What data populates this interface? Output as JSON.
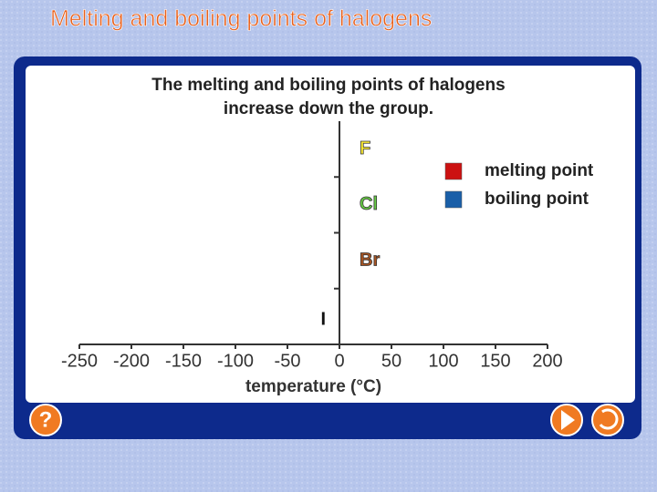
{
  "page_title": "Melting and boiling points of halogens",
  "help_button": "?",
  "chart_data": {
    "type": "bar",
    "title": [
      "The melting and boiling points of halogens",
      "increase down the group."
    ],
    "x_label": "temperature (°C)",
    "categories": [
      "F",
      "Cl",
      "Br",
      "I"
    ],
    "category_colors": [
      "#ffee33",
      "#66cc44",
      "#aa5522",
      "#111111"
    ],
    "series": [
      {
        "name": "melting point",
        "color": "#cc1111",
        "values": [
          null,
          null,
          null,
          null
        ]
      },
      {
        "name": "boiling point",
        "color": "#1a5fa8",
        "values": [
          null,
          null,
          null,
          null
        ]
      }
    ],
    "xlim": [
      -250,
      200
    ],
    "xticks": [
      -250,
      -200,
      -150,
      -100,
      -50,
      0,
      50,
      100,
      150,
      200
    ],
    "legend": "upper right"
  }
}
